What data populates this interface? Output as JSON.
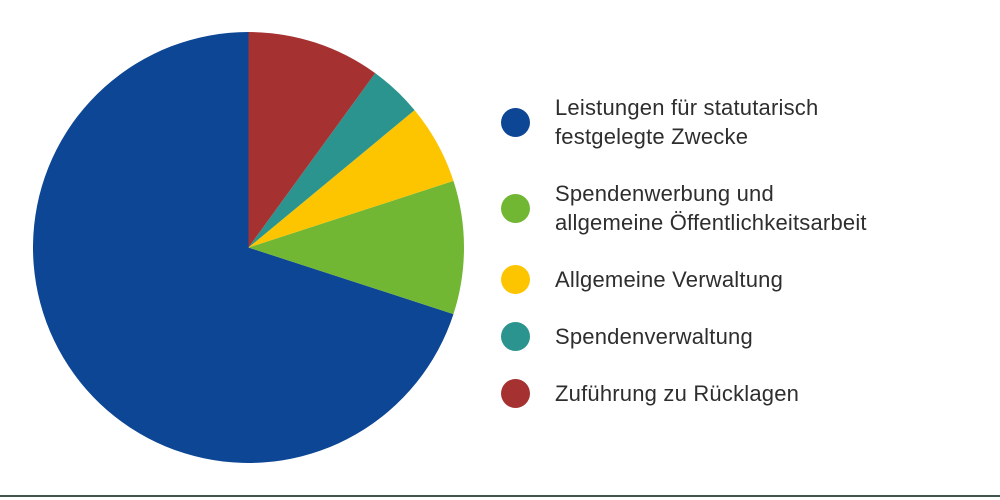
{
  "chart_data": {
    "type": "pie",
    "title": "",
    "unit": "percent",
    "start_angle_deg": 90,
    "direction": "counterclockwise",
    "legend_position": "right",
    "series": [
      {
        "label": "Leistungen für statutarisch festgelegte Zwecke",
        "label_lines": [
          "Leistungen für statutarisch",
          "festgelegte Zwecke"
        ],
        "value": 70,
        "color": "#0c4694"
      },
      {
        "label": "Spendenwerbung und allgemeine Öffentlichkeitsarbeit",
        "label_lines": [
          "Spendenwerbung und",
          "allgemeine Öffentlichkeitsarbeit"
        ],
        "value": 10,
        "color": "#72b734"
      },
      {
        "label": "Allgemeine Verwaltung",
        "label_lines": [
          "Allgemeine Verwaltung"
        ],
        "value": 6,
        "color": "#fdc500"
      },
      {
        "label": "Spendenverwaltung",
        "label_lines": [
          "Spendenverwaltung"
        ],
        "value": 4,
        "color": "#2b948f"
      },
      {
        "label": "Zuführung zu Rücklagen",
        "label_lines": [
          "Zuführung zu Rücklagen"
        ],
        "value": 10,
        "color": "#a63131"
      }
    ]
  },
  "footer": {
    "divider_color": "#41564a"
  }
}
